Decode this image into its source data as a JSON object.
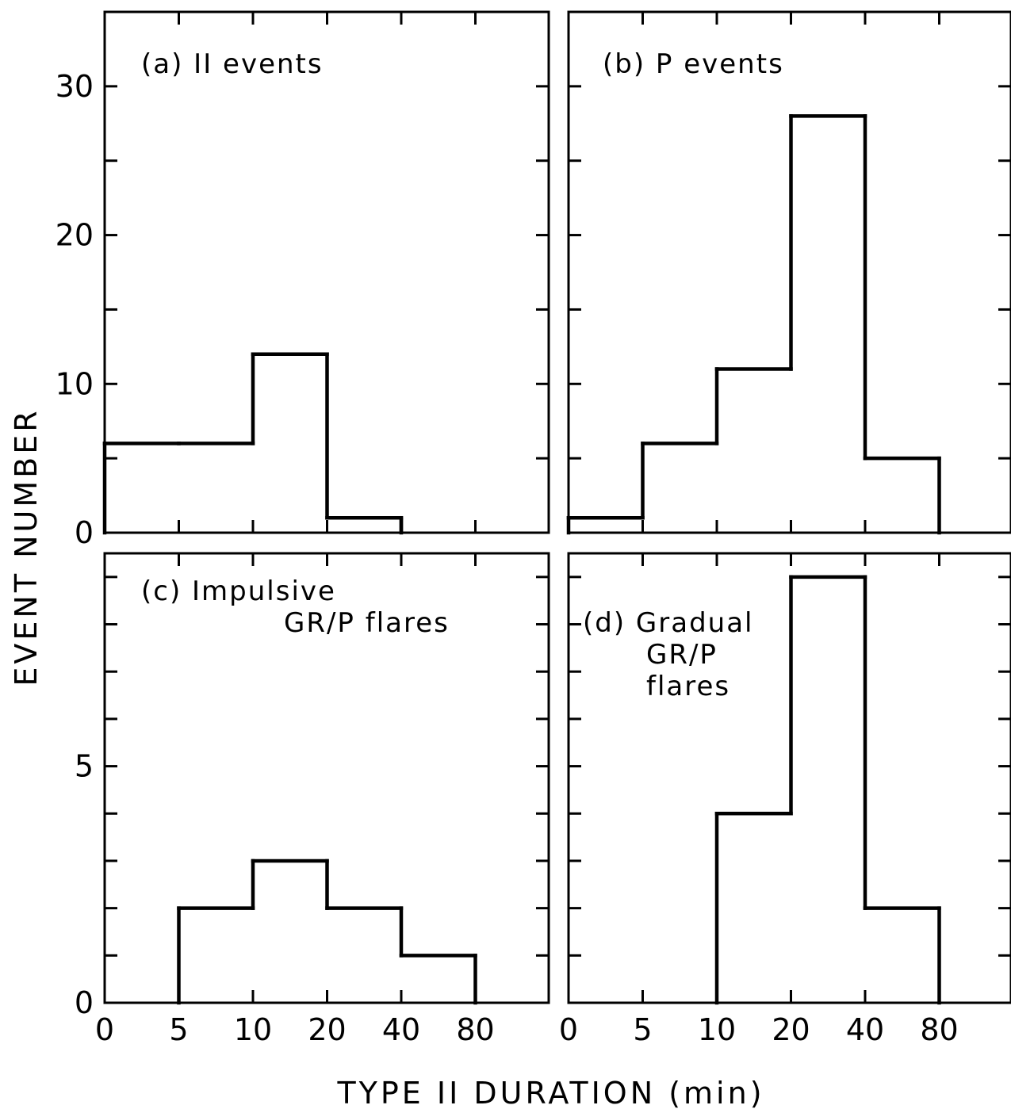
{
  "figure": {
    "xlabel": "TYPE II DURATION (min)",
    "ylabel": "EVENT NUMBER"
  },
  "chart_data": [
    {
      "type": "bar",
      "panel": "a",
      "title_lines": [
        "(a) II events"
      ],
      "categories": [
        "0-5",
        "5-10",
        "10-20",
        "20-40",
        "40-80"
      ],
      "x_tick_labels": [
        "0",
        "5",
        "10",
        "20",
        "40",
        "80"
      ],
      "values": [
        6,
        6,
        12,
        1,
        0
      ],
      "ylim": [
        0,
        35
      ],
      "y_tick_labels": [
        "0",
        "10",
        "20",
        "30"
      ],
      "y_tick_values": [
        0,
        10,
        20,
        30
      ]
    },
    {
      "type": "bar",
      "panel": "b",
      "title_lines": [
        "(b) P events"
      ],
      "categories": [
        "0-5",
        "5-10",
        "10-20",
        "20-40",
        "40-80"
      ],
      "x_tick_labels": [
        "0",
        "5",
        "10",
        "20",
        "40",
        "80"
      ],
      "values": [
        1,
        6,
        11,
        28,
        5
      ],
      "ylim": [
        0,
        35
      ],
      "y_tick_labels": [],
      "y_tick_values": [
        0,
        10,
        20,
        30
      ]
    },
    {
      "type": "bar",
      "panel": "c",
      "title_lines": [
        "(c) Impulsive",
        "GR/P flares"
      ],
      "categories": [
        "0-5",
        "5-10",
        "10-20",
        "20-40",
        "40-80"
      ],
      "x_tick_labels": [
        "0",
        "5",
        "10",
        "20",
        "40",
        "80"
      ],
      "values": [
        0,
        2,
        3,
        2,
        1
      ],
      "ylim": [
        0,
        9.5
      ],
      "y_tick_labels": [
        "0",
        "5"
      ],
      "y_tick_values": [
        0,
        5
      ]
    },
    {
      "type": "bar",
      "panel": "d",
      "title_lines": [
        "(d) Gradual",
        "GR/P",
        "flares"
      ],
      "categories": [
        "0-5",
        "5-10",
        "10-20",
        "20-40",
        "40-80"
      ],
      "x_tick_labels": [
        "0",
        "5",
        "10",
        "20",
        "40",
        "80"
      ],
      "values": [
        0,
        0,
        4,
        9,
        2
      ],
      "ylim": [
        0,
        9.5
      ],
      "y_tick_labels": [],
      "y_tick_values": [
        0,
        5
      ]
    }
  ]
}
